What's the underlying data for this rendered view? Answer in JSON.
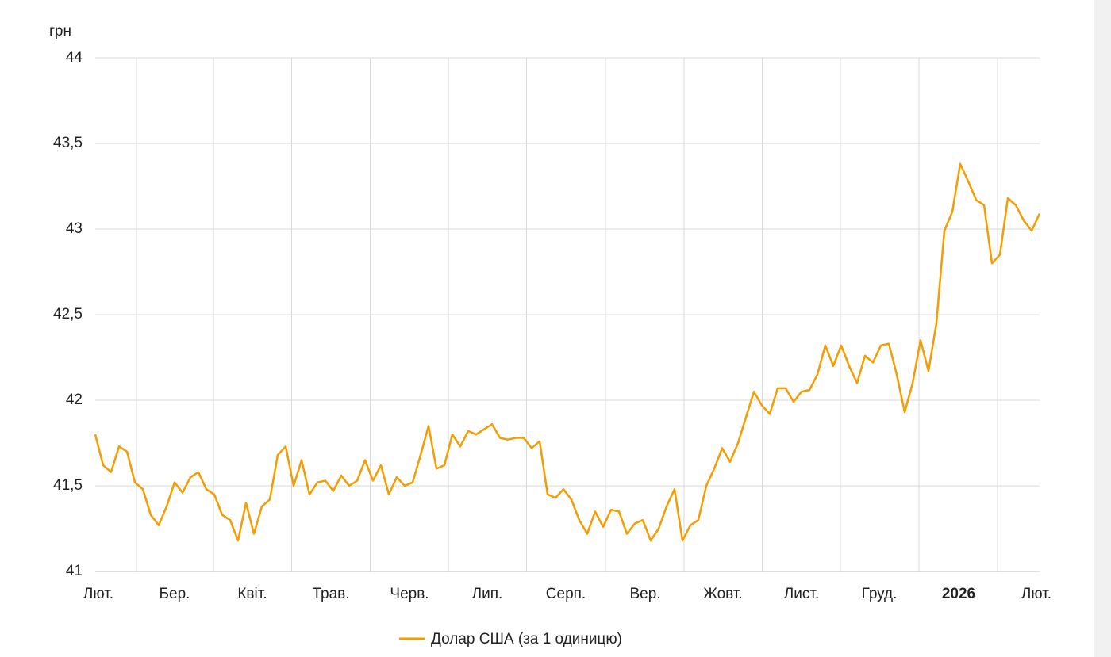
{
  "chart_data": {
    "type": "line",
    "y_label": "грн",
    "xlim": [
      0,
      119
    ],
    "ylim": [
      41,
      44
    ],
    "xticks": [
      {
        "value": 0.4,
        "label": "Лют."
      },
      {
        "value": 10,
        "label": "Бер."
      },
      {
        "value": 19.8,
        "label": "Квіт."
      },
      {
        "value": 29.7,
        "label": "Трав."
      },
      {
        "value": 39.6,
        "label": "Черв."
      },
      {
        "value": 49.4,
        "label": "Лип."
      },
      {
        "value": 59.3,
        "label": "Серп."
      },
      {
        "value": 69.3,
        "label": "Вер."
      },
      {
        "value": 79.1,
        "label": "Жовт."
      },
      {
        "value": 89,
        "label": "Лист."
      },
      {
        "value": 98.8,
        "label": "Груд."
      },
      {
        "value": 108.8,
        "label": "2026",
        "bold": true
      },
      {
        "value": 118.6,
        "label": "Лют."
      }
    ],
    "yticks": [
      41,
      {
        "value": 41.5,
        "label": "41,5"
      },
      42,
      {
        "value": 42.5,
        "label": "42,5"
      },
      43,
      {
        "value": 43.5,
        "label": "43,5"
      },
      44
    ],
    "grid": true,
    "series": [
      {
        "name": "Долар США (за 1 одиницю)",
        "color": "#f59c00",
        "values": [
          41.8,
          41.62,
          41.58,
          41.73,
          41.7,
          41.52,
          41.48,
          41.33,
          41.27,
          41.38,
          41.52,
          41.46,
          41.55,
          41.58,
          41.48,
          41.45,
          41.33,
          41.3,
          41.18,
          41.4,
          41.22,
          41.38,
          41.42,
          41.68,
          41.73,
          41.5,
          41.65,
          41.45,
          41.52,
          41.53,
          41.47,
          41.56,
          41.5,
          41.53,
          41.65,
          41.53,
          41.62,
          41.45,
          41.55,
          41.5,
          41.52,
          41.68,
          41.85,
          41.6,
          41.62,
          41.8,
          41.73,
          41.82,
          41.8,
          41.83,
          41.86,
          41.78,
          41.77,
          41.78,
          41.78,
          41.72,
          41.76,
          41.45,
          41.43,
          41.48,
          41.42,
          41.3,
          41.22,
          41.35,
          41.26,
          41.36,
          41.35,
          41.22,
          41.28,
          41.3,
          41.18,
          41.25,
          41.38,
          41.48,
          41.18,
          41.27,
          41.3,
          41.5,
          41.6,
          41.72,
          41.64,
          41.75,
          41.9,
          42.05,
          41.97,
          41.92,
          42.07,
          42.07,
          41.99,
          42.05,
          42.06,
          42.15,
          42.32,
          42.2,
          42.32,
          42.2,
          42.1,
          42.26,
          42.22,
          42.32,
          42.33,
          42.15,
          41.93,
          42.1,
          42.35,
          42.17,
          42.45,
          42.99,
          43.1,
          43.38,
          43.28,
          43.17,
          43.14,
          42.8,
          42.85,
          43.18,
          43.14,
          43.05,
          42.99,
          43.09
        ]
      }
    ]
  }
}
